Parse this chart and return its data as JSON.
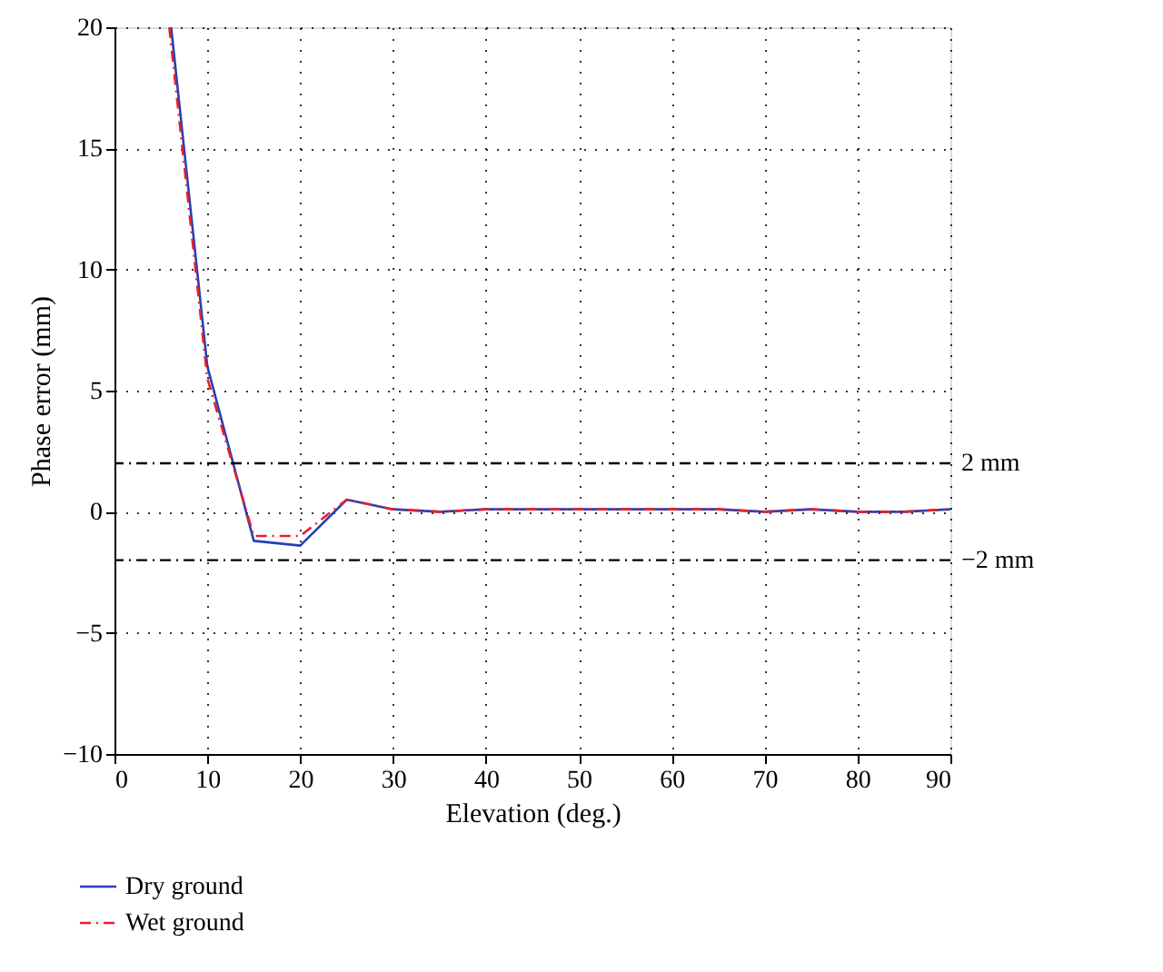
{
  "chart_data": {
    "type": "line",
    "xlabel": "Elevation (deg.)",
    "ylabel": "Phase error (mm)",
    "xlim": [
      0,
      90
    ],
    "ylim": [
      -10,
      20
    ],
    "xticks": [
      0,
      10,
      20,
      30,
      40,
      50,
      60,
      70,
      80,
      90
    ],
    "yticks": [
      -10,
      -5,
      0,
      5,
      10,
      15,
      20
    ],
    "grid": true,
    "legend": "bottom left",
    "series": [
      {
        "name": "Dry ground",
        "color": "#2340b8",
        "line_style": "solid",
        "x": [
          6.1,
          10,
          15,
          20,
          25,
          30,
          35,
          40,
          45,
          50,
          55,
          60,
          65,
          70,
          75,
          80,
          85,
          90
        ],
        "values": [
          20,
          6.0,
          -1.2,
          -1.4,
          0.5,
          0.1,
          0.0,
          0.1,
          0.1,
          0.1,
          0.1,
          0.1,
          0.1,
          0.0,
          0.1,
          0.0,
          0.0,
          0.1
        ]
      },
      {
        "name": "Wet ground",
        "color": "#e8202a",
        "line_style": "dashed",
        "x": [
          5.9,
          10,
          15,
          20,
          25,
          30,
          35,
          40,
          45,
          50,
          55,
          60,
          65,
          70,
          75,
          80,
          85,
          90
        ],
        "values": [
          20,
          5.5,
          -1.0,
          -1.0,
          0.5,
          0.1,
          0.0,
          0.1,
          0.1,
          0.1,
          0.1,
          0.1,
          0.1,
          0.0,
          0.1,
          0.0,
          0.0,
          0.1
        ]
      }
    ],
    "ref_lines": [
      {
        "axis": "y",
        "value": 2,
        "label": "2 mm",
        "color": "#000000",
        "line_style": "dashed"
      },
      {
        "axis": "y",
        "value": -2,
        "label": "−2 mm",
        "color": "#000000",
        "line_style": "dashed"
      }
    ]
  }
}
